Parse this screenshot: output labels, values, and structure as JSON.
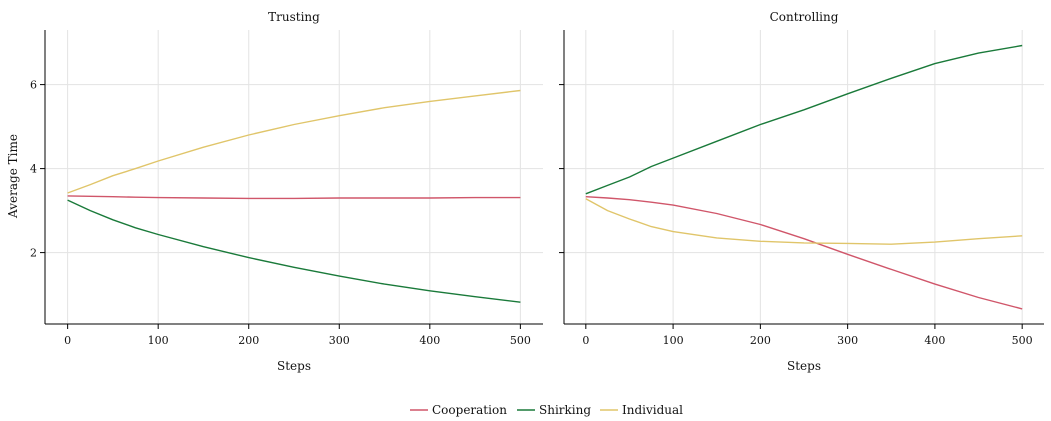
{
  "chart_data": {
    "type": "line",
    "ylabel": "Average Time",
    "xlabel": "Steps",
    "panels": [
      {
        "title": "Trusting",
        "xlim": [
          -25,
          525
        ],
        "ylim": [
          0.3,
          7.3
        ],
        "xticks": [
          0,
          100,
          200,
          300,
          400,
          500
        ],
        "yticks": [
          2,
          4,
          6
        ],
        "series": [
          {
            "name": "Cooperation",
            "x": [
              0,
              25,
              50,
              75,
              100,
              150,
              200,
              250,
              300,
              350,
              400,
              450,
              500
            ],
            "y": [
              3.35,
              3.34,
              3.33,
              3.32,
              3.31,
              3.3,
              3.29,
              3.29,
              3.3,
              3.3,
              3.3,
              3.31,
              3.31
            ]
          },
          {
            "name": "Shirking",
            "x": [
              0,
              25,
              50,
              75,
              100,
              150,
              200,
              250,
              300,
              350,
              400,
              450,
              500
            ],
            "y": [
              3.25,
              3.0,
              2.78,
              2.59,
              2.43,
              2.14,
              1.88,
              1.65,
              1.44,
              1.25,
              1.09,
              0.95,
              0.82
            ]
          },
          {
            "name": "Individual",
            "x": [
              0,
              25,
              50,
              75,
              100,
              150,
              200,
              250,
              300,
              350,
              400,
              450,
              500
            ],
            "y": [
              3.42,
              3.62,
              3.83,
              4.0,
              4.18,
              4.51,
              4.8,
              5.05,
              5.26,
              5.45,
              5.6,
              5.73,
              5.86
            ]
          }
        ]
      },
      {
        "title": "Controlling",
        "xlim": [
          -25,
          525
        ],
        "ylim": [
          0.3,
          7.3
        ],
        "xticks": [
          0,
          100,
          200,
          300,
          400,
          500
        ],
        "yticks": [
          2,
          4,
          6
        ],
        "series": [
          {
            "name": "Cooperation",
            "x": [
              0,
              25,
              50,
              75,
              100,
              150,
              200,
              250,
              300,
              350,
              400,
              450,
              500
            ],
            "y": [
              3.33,
              3.3,
              3.26,
              3.2,
              3.13,
              2.93,
              2.67,
              2.33,
              1.96,
              1.6,
              1.25,
              0.93,
              0.66
            ]
          },
          {
            "name": "Shirking",
            "x": [
              0,
              25,
              50,
              75,
              100,
              150,
              200,
              250,
              300,
              350,
              400,
              450,
              500
            ],
            "y": [
              3.4,
              3.6,
              3.8,
              4.05,
              4.25,
              4.65,
              5.05,
              5.4,
              5.78,
              6.15,
              6.5,
              6.75,
              6.93
            ]
          },
          {
            "name": "Individual",
            "x": [
              0,
              25,
              50,
              75,
              100,
              150,
              200,
              250,
              300,
              350,
              400,
              450,
              500
            ],
            "y": [
              3.28,
              3.0,
              2.8,
              2.62,
              2.5,
              2.35,
              2.27,
              2.23,
              2.22,
              2.2,
              2.25,
              2.33,
              2.4
            ]
          }
        ]
      }
    ],
    "legend": {
      "placement": "bottom-center",
      "items": [
        {
          "name": "Cooperation",
          "color": "#d0566a"
        },
        {
          "name": "Shirking",
          "color": "#1a7a3a"
        },
        {
          "name": "Individual",
          "color": "#e0c56a"
        }
      ]
    },
    "grid": true
  }
}
